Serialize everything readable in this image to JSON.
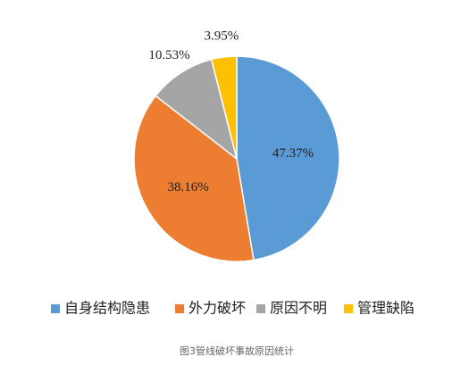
{
  "chart_data": {
    "type": "pie",
    "categories": [
      "自身结构隐患",
      "外力破坏",
      "原因不明",
      "管理缺陷"
    ],
    "values": [
      47.37,
      38.16,
      10.53,
      3.95
    ],
    "value_labels": [
      "47.37%",
      "38.16%",
      "10.53%",
      "3.95%"
    ],
    "colors": [
      "#5b9bd5",
      "#ed7d31",
      "#a5a5a5",
      "#ffc000"
    ],
    "legend": "bottom",
    "caption": "图3管线破坏事故原因统计"
  }
}
